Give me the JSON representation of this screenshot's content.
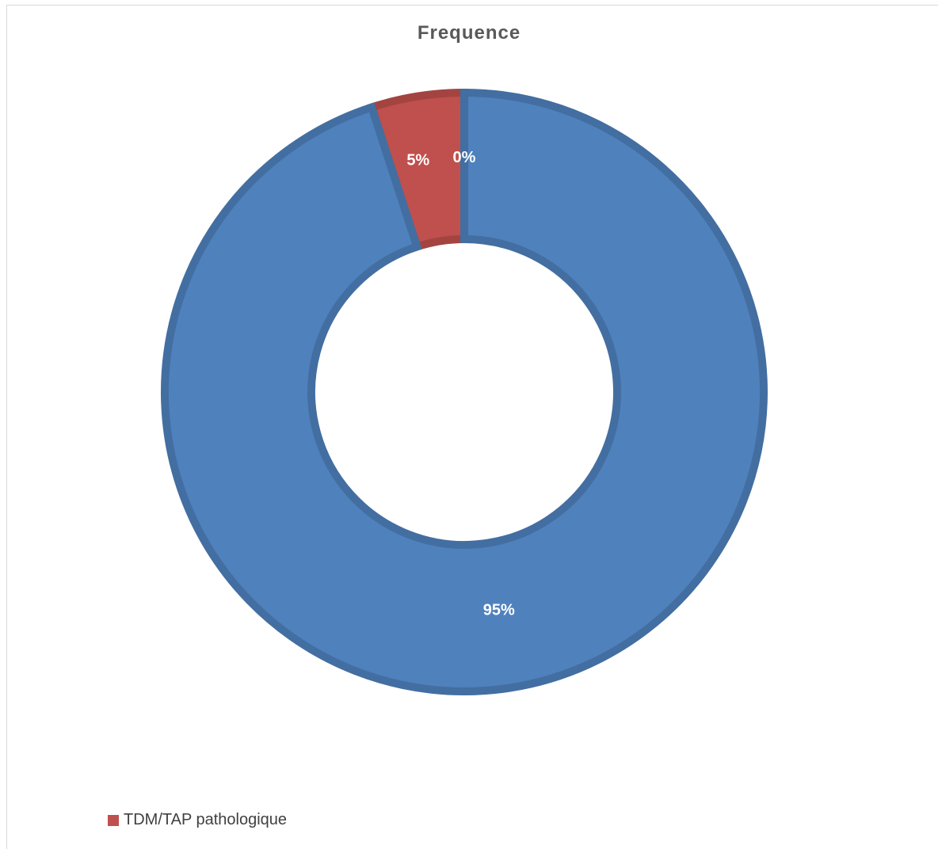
{
  "chart_data": {
    "type": "pie",
    "style": "doughnut",
    "title": "Frequence",
    "categories": [
      "",
      "TDM/TAP pathologique",
      ""
    ],
    "values": [
      0,
      5,
      95
    ],
    "data_labels": [
      "0%",
      "5%",
      "95%"
    ],
    "colors": [
      "#4F81BD",
      "#C0504D",
      "#4F81BD"
    ],
    "legend": {
      "position": "bottom-left",
      "entries": [
        {
          "label": "TDM/TAP pathologique",
          "color": "#C0504D"
        }
      ]
    }
  }
}
